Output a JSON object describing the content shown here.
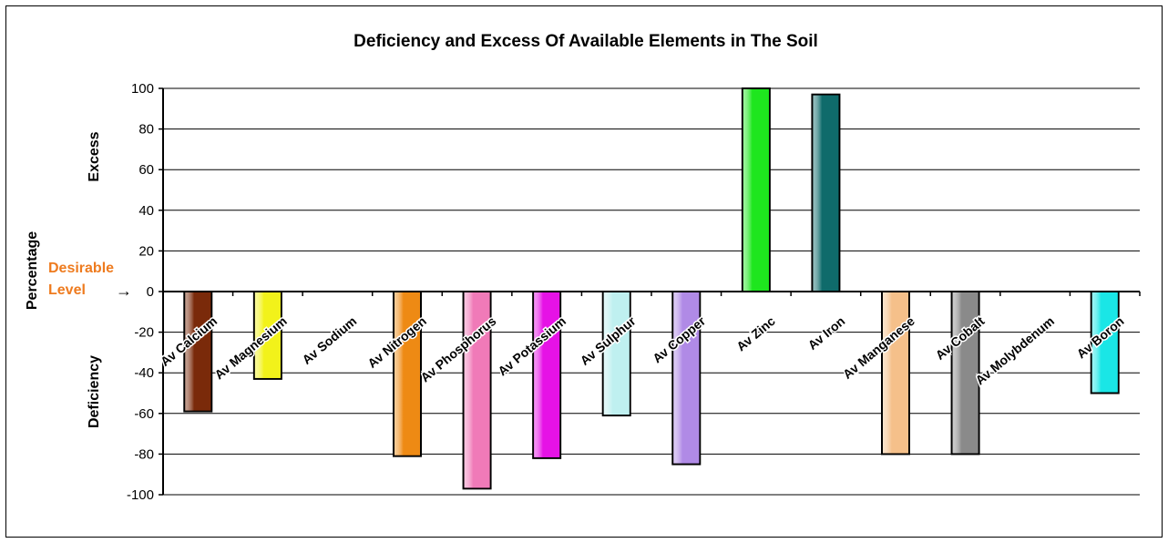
{
  "chart_data": {
    "type": "bar",
    "title": "Deficiency and Excess Of Available Elements in The Soil",
    "ylabel": "Percentage",
    "ylabel_upper": "Excess",
    "ylabel_lower": "Deficiency",
    "ylim": [
      -100,
      100
    ],
    "yticks": [
      "100",
      "80",
      "60",
      "40",
      "20",
      "0",
      "-20",
      "-40",
      "-60",
      "-80",
      "-100"
    ],
    "grid": true,
    "reference_label_line1": "Desirable",
    "reference_label_line2": "Level",
    "reference_arrow": "→",
    "categories": [
      "Av Calcium",
      "Av Magnesium",
      "Av Sodium",
      "Av Nitrogen",
      "Av Phosphorus",
      "Av Potassium",
      "Av Sulphur",
      "Av Copper",
      "Av Zinc",
      "Av Iron",
      "Av Manganese",
      "Av Cobalt",
      "Av Molybdenum",
      "Av Boron"
    ],
    "values": [
      -59,
      -43,
      0,
      -81,
      -97,
      -82,
      -61,
      -85,
      100,
      97,
      -80,
      -80,
      0,
      -50
    ],
    "colors": [
      "#7a2a0a",
      "#f2f21a",
      "#cccccc",
      "#ee8a14",
      "#f07ab8",
      "#e612e6",
      "#bff0f0",
      "#b08ae6",
      "#1ee61e",
      "#0f6b6b",
      "#f5c08a",
      "#8a8a8a",
      "#cccccc",
      "#1ae6e6"
    ]
  }
}
